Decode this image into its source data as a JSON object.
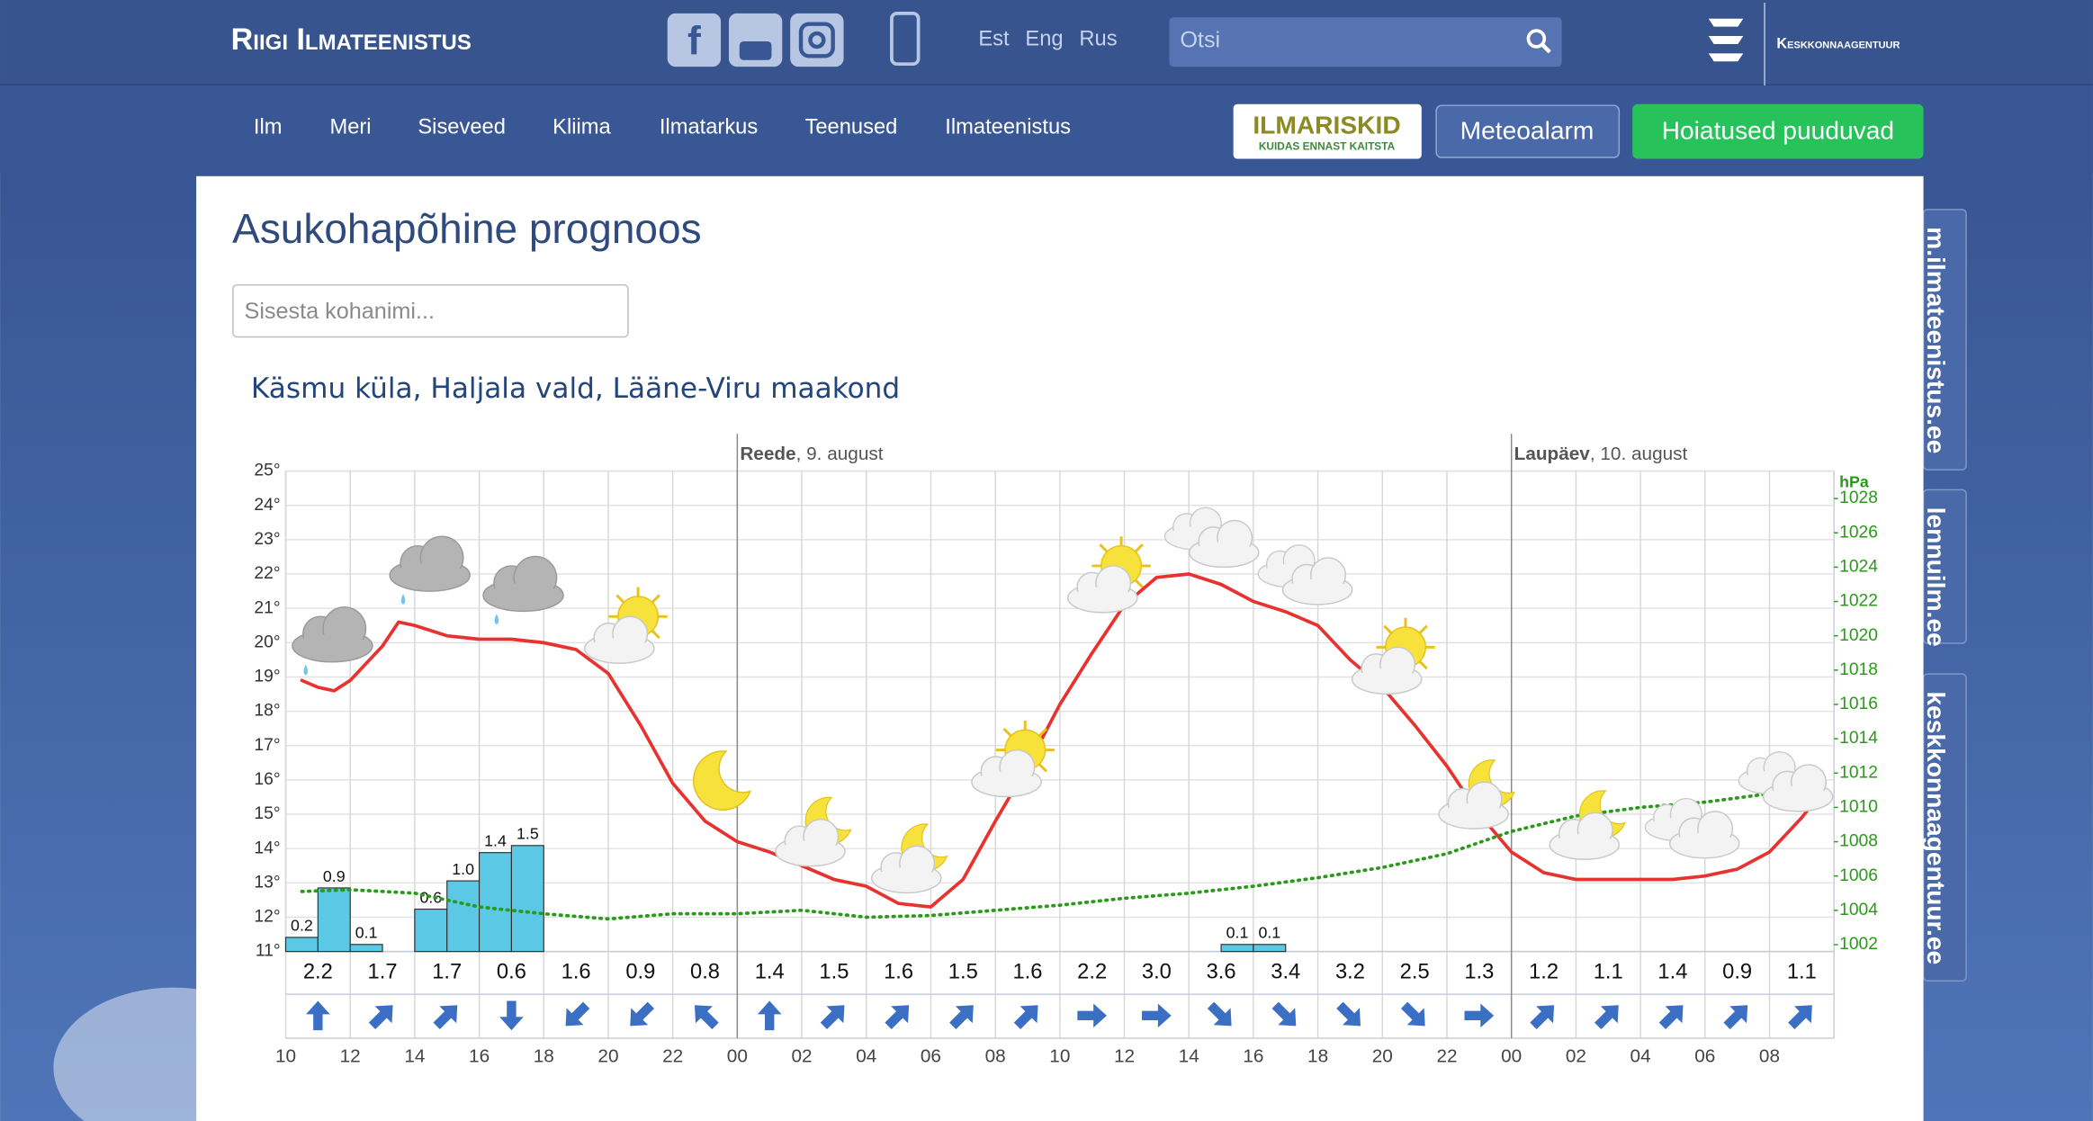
{
  "header": {
    "brand": "Riigi Ilmateenistus",
    "languages": [
      "Est",
      "Eng",
      "Rus"
    ],
    "search_placeholder": "Otsi",
    "agency": "Keskkonnaagentuur"
  },
  "nav": {
    "items": [
      "Ilm",
      "Meri",
      "Siseveed",
      "Kliima",
      "Ilmatarkus",
      "Teenused",
      "Ilmateenistus"
    ],
    "badge_title": "ILMARISKID",
    "badge_subtitle": "KUIDAS ENNAST KAITSTA",
    "buttons": [
      "Meteoalarm",
      "Hoiatused puuduvad"
    ]
  },
  "side_tabs": [
    "m.ilmateenistus.ee",
    "lennuilm.ee",
    "keskkonnaagentuur.ee"
  ],
  "page": {
    "title": "Asukohapõhine prognoos",
    "input_placeholder": "Sisesta kohanimi...",
    "location": "Käsmu küla, Haljala vald, Lääne-Viru maakond"
  },
  "chart_data": {
    "type": "line",
    "grid": true,
    "xlim": [
      10,
      58
    ],
    "xticks": [
      10,
      12,
      14,
      16,
      18,
      20,
      22,
      {
        "value": 24,
        "label": "00"
      },
      {
        "value": 26,
        "label": "02"
      },
      {
        "value": 28,
        "label": "04"
      },
      {
        "value": 30,
        "label": "06"
      },
      {
        "value": 32,
        "label": "08"
      },
      {
        "value": 34,
        "label": "10"
      },
      {
        "value": 36,
        "label": "12"
      },
      {
        "value": 38,
        "label": "14"
      },
      {
        "value": 40,
        "label": "16"
      },
      {
        "value": 42,
        "label": "18"
      },
      {
        "value": 44,
        "label": "20"
      },
      {
        "value": 46,
        "label": "22"
      },
      {
        "value": 48,
        "label": "00"
      },
      {
        "value": 50,
        "label": "02"
      },
      {
        "value": 52,
        "label": "04"
      },
      {
        "value": 54,
        "label": "06"
      },
      {
        "value": 56,
        "label": "08"
      }
    ],
    "ylim": [
      11,
      25
    ],
    "yticks": [
      {
        "value": 11,
        "label": "11°"
      },
      {
        "value": 12,
        "label": "12°"
      },
      {
        "value": 13,
        "label": "13°"
      },
      {
        "value": 14,
        "label": "14°"
      },
      {
        "value": 15,
        "label": "15°"
      },
      {
        "value": 16,
        "label": "16°"
      },
      {
        "value": 17,
        "label": "17°"
      },
      {
        "value": 18,
        "label": "18°"
      },
      {
        "value": 19,
        "label": "19°"
      },
      {
        "value": 20,
        "label": "20°"
      },
      {
        "value": 21,
        "label": "21°"
      },
      {
        "value": 22,
        "label": "22°"
      },
      {
        "value": 23,
        "label": "23°"
      },
      {
        "value": 24,
        "label": "24°"
      },
      {
        "value": 25,
        "label": "25°"
      }
    ],
    "y2label": "hPa",
    "y2lim": [
      1001.6,
      1029.6
    ],
    "y2ticks": [
      1002,
      1004,
      1006,
      1008,
      1010,
      1012,
      1014,
      1016,
      1018,
      1020,
      1022,
      1024,
      1026,
      1028
    ],
    "annotations": [
      {
        "x": 24,
        "day": "Reede",
        "date": ", 9. august"
      },
      {
        "x": 48,
        "day": "Laupäev",
        "date": ", 10. august"
      }
    ],
    "series": [
      {
        "color": "#e8322f",
        "x": [
          10.5,
          11,
          11.5,
          12,
          13,
          13.5,
          14,
          15,
          16,
          17,
          18,
          19,
          20,
          21,
          22,
          23,
          24,
          25,
          26,
          27,
          28,
          29,
          30,
          31,
          32,
          33,
          34,
          35,
          36,
          37,
          38,
          39,
          40,
          41,
          42,
          43,
          44,
          45,
          46,
          47,
          48,
          49,
          50,
          51,
          52,
          53,
          54,
          55,
          56,
          57,
          57.5
        ],
        "values": [
          18.9,
          18.7,
          18.6,
          18.9,
          19.9,
          20.6,
          20.5,
          20.2,
          20.1,
          20.1,
          20.0,
          19.8,
          19.1,
          17.6,
          15.9,
          14.8,
          14.2,
          13.9,
          13.5,
          13.1,
          12.9,
          12.4,
          12.3,
          13.1,
          14.8,
          16.4,
          18.2,
          19.7,
          21.1,
          21.9,
          22.0,
          21.7,
          21.2,
          20.9,
          20.5,
          19.5,
          18.7,
          17.6,
          16.4,
          15.0,
          13.9,
          13.3,
          13.1,
          13.1,
          13.1,
          13.1,
          13.2,
          13.4,
          13.9,
          14.9,
          15.5
        ]
      },
      {
        "color": "#2a9a1a",
        "axis": "y2",
        "dash": "dotted",
        "x": [
          10.5,
          12,
          14,
          16,
          18,
          20,
          22,
          24,
          26,
          28,
          30,
          32,
          34,
          36,
          38,
          40,
          42,
          44,
          46,
          48,
          50,
          52,
          54,
          56,
          57.5
        ],
        "values": [
          1005.1,
          1005.2,
          1005.0,
          1004.2,
          1003.8,
          1003.5,
          1003.8,
          1003.8,
          1004.0,
          1003.6,
          1003.7,
          1004.0,
          1004.3,
          1004.7,
          1005.0,
          1005.4,
          1005.9,
          1006.5,
          1007.3,
          1008.6,
          1009.5,
          1010.0,
          1010.3,
          1010.8,
          1012.0
        ]
      }
    ],
    "precipitation": {
      "type": "bar",
      "color": "#5bc8e6",
      "ylim": [
        0,
        6.8
      ],
      "x": [
        10,
        11,
        12,
        14,
        15,
        16,
        17,
        39,
        40
      ],
      "values": [
        0.2,
        0.9,
        0.1,
        0.6,
        1.0,
        1.4,
        1.5,
        0.1,
        0.1
      ],
      "value_labels": [
        "0.2",
        "0.9",
        "0.1",
        "0.6",
        "1.0",
        "1.4",
        "1.5",
        "0.1",
        "0.1"
      ]
    },
    "wind": {
      "color": "#3a6fc4",
      "x": [
        11,
        13,
        15,
        17,
        19,
        21,
        23,
        25,
        27,
        29,
        31,
        33,
        35,
        37,
        39,
        41,
        43,
        45,
        47,
        49,
        51,
        53,
        55,
        57
      ],
      "values": [
        2.2,
        1.7,
        1.7,
        0.6,
        1.6,
        0.9,
        0.8,
        1.4,
        1.5,
        1.6,
        1.5,
        1.6,
        2.2,
        3.0,
        3.6,
        3.4,
        3.2,
        2.5,
        1.3,
        1.2,
        1.1,
        1.4,
        0.9,
        1.1
      ],
      "value_labels": [
        "2.2",
        "1.7",
        "1.7",
        "0.6",
        "1.6",
        "0.9",
        "0.8",
        "1.4",
        "1.5",
        "1.6",
        "1.5",
        "1.6",
        "2.2",
        "3.0",
        "3.6",
        "3.4",
        "3.2",
        "2.5",
        "1.3",
        "1.2",
        "1.1",
        "1.4",
        "0.9",
        "1.1"
      ],
      "directions": [
        0,
        45,
        45,
        180,
        225,
        225,
        315,
        0,
        45,
        45,
        45,
        45,
        90,
        90,
        135,
        135,
        135,
        135,
        90,
        45,
        45,
        45,
        45,
        45
      ]
    }
  }
}
